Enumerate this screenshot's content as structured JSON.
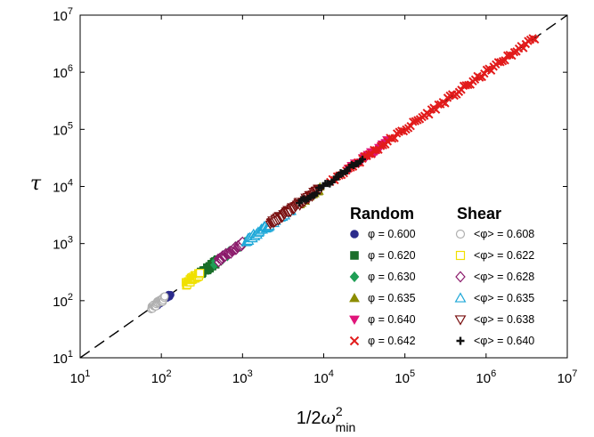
{
  "chart_data": {
    "type": "scatter",
    "x_scale": "log",
    "y_scale": "log",
    "xlim": [
      10,
      10000000
    ],
    "ylim": [
      10,
      10000000
    ],
    "xlabel": "1/2ω²min",
    "xlabel_parts": {
      "prefix": "1/2",
      "symbol": "ω",
      "sup": "2",
      "sub": "min"
    },
    "ylabel": "τ",
    "x_ticks": [
      {
        "base": "10",
        "exp": "1",
        "value": 10
      },
      {
        "base": "10",
        "exp": "2",
        "value": 100
      },
      {
        "base": "10",
        "exp": "3",
        "value": 1000
      },
      {
        "base": "10",
        "exp": "4",
        "value": 10000
      },
      {
        "base": "10",
        "exp": "5",
        "value": 100000
      },
      {
        "base": "10",
        "exp": "6",
        "value": 1000000
      },
      {
        "base": "10",
        "exp": "7",
        "value": 10000000
      }
    ],
    "y_ticks": [
      {
        "base": "10",
        "exp": "1",
        "value": 10
      },
      {
        "base": "10",
        "exp": "2",
        "value": 100
      },
      {
        "base": "10",
        "exp": "3",
        "value": 1000
      },
      {
        "base": "10",
        "exp": "4",
        "value": 10000
      },
      {
        "base": "10",
        "exp": "5",
        "value": 100000
      },
      {
        "base": "10",
        "exp": "6",
        "value": 1000000
      },
      {
        "base": "10",
        "exp": "7",
        "value": 10000000
      }
    ],
    "reference_line": {
      "style": "dashed",
      "from": [
        10,
        10
      ],
      "to": [
        10000000,
        10000000
      ]
    },
    "legend": {
      "placement": "lower-right",
      "groups": [
        {
          "title": "Random",
          "entries": [
            "φ = 0.600",
            "φ = 0.620",
            "φ = 0.630",
            "φ = 0.635",
            "φ = 0.640",
            "φ = 0.642"
          ]
        },
        {
          "title": "Shear",
          "entries": [
            "<φ> = 0.608",
            "<φ> = 0.622",
            "<φ> = 0.628",
            "<φ> = 0.635",
            "<φ> = 0.638",
            "<φ> = 0.640"
          ]
        }
      ]
    },
    "series": [
      {
        "name": "φ = 0.600",
        "marker": "circle",
        "color": "#2b2b8c",
        "filled": true,
        "x_range": [
          90,
          130
        ],
        "points": 14
      },
      {
        "name": "φ = 0.620",
        "marker": "square",
        "color": "#1a6e2a",
        "filled": true,
        "x_range": [
          300,
          500
        ],
        "points": 30
      },
      {
        "name": "φ = 0.630",
        "marker": "diamond",
        "color": "#1f9e55",
        "filled": true,
        "x_range": [
          450,
          1100
        ],
        "points": 35
      },
      {
        "name": "φ = 0.635",
        "marker": "triangle-up",
        "color": "#8c8c00",
        "filled": true,
        "x_range": [
          5000,
          9000
        ],
        "points": 25
      },
      {
        "name": "φ = 0.640",
        "marker": "triangle-down",
        "color": "#e0157a",
        "filled": true,
        "x_range": [
          20000,
          60000
        ],
        "points": 25
      },
      {
        "name": "φ = 0.642",
        "marker": "x",
        "color": "#e21b1b",
        "filled": false,
        "x_range": [
          12000,
          4000000
        ],
        "points": 90
      },
      {
        "name": "<φ> = 0.608",
        "marker": "circle",
        "color": "#b0b0b0",
        "filled": false,
        "x_range": [
          75,
          110
        ],
        "points": 30
      },
      {
        "name": "<φ> = 0.622",
        "marker": "square",
        "color": "#f0e000",
        "filled": false,
        "x_range": [
          200,
          300
        ],
        "points": 40
      },
      {
        "name": "<φ> = 0.628",
        "marker": "diamond",
        "color": "#8b1a6b",
        "filled": false,
        "x_range": [
          500,
          1000
        ],
        "points": 45
      },
      {
        "name": "<φ> = 0.635",
        "marker": "triangle-up",
        "color": "#1fa8d8",
        "filled": false,
        "x_range": [
          1100,
          4000
        ],
        "points": 60
      },
      {
        "name": "<φ> = 0.638",
        "marker": "triangle-down",
        "color": "#7a1010",
        "filled": false,
        "x_range": [
          2200,
          9000
        ],
        "points": 70
      },
      {
        "name": "<φ> = 0.640",
        "marker": "plus",
        "color": "#111111",
        "filled": true,
        "x_range": [
          5000,
          30000
        ],
        "points": 30
      }
    ]
  }
}
